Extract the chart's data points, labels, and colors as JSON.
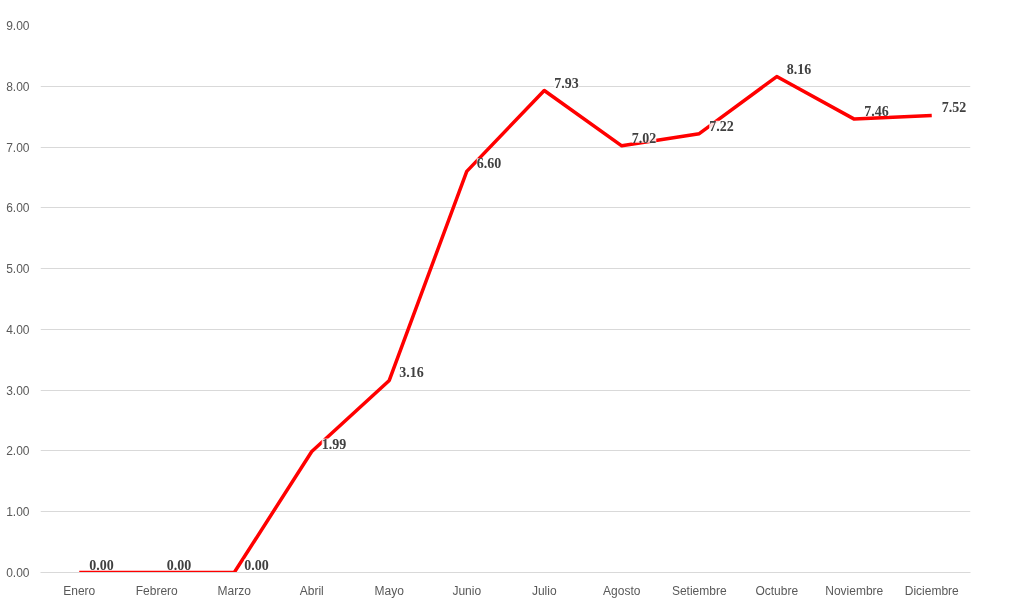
{
  "chart_data": {
    "type": "line",
    "categories": [
      "Enero",
      "Febrero",
      "Marzo",
      "Abril",
      "Mayo",
      "Junio",
      "Julio",
      "Agosto",
      "Setiembre",
      "Octubre",
      "Noviembre",
      "Diciembre"
    ],
    "series": [
      {
        "color": "#ff0000",
        "values": [
          0,
          0,
          0,
          1.99,
          3.16,
          6.6,
          7.93,
          7.02,
          7.22,
          8.16,
          7.46,
          7.52
        ],
        "value_labels": [
          "0.00",
          "0.00",
          "0.00",
          "1.99",
          "3.16",
          "6.60",
          "7.93",
          "7.02",
          "7.22",
          "8.16",
          "7.46",
          "7.52"
        ]
      }
    ],
    "ylim": [
      0,
      9
    ],
    "yticks": [
      {
        "value": 0,
        "label": "0.00"
      },
      {
        "value": 1,
        "label": "1.00"
      },
      {
        "value": 2,
        "label": "2.00"
      },
      {
        "value": 3,
        "label": "3.00"
      },
      {
        "value": 4,
        "label": "4.00"
      },
      {
        "value": 5,
        "label": "5.00"
      },
      {
        "value": 6,
        "label": "6.00"
      },
      {
        "value": 7,
        "label": "7.00"
      },
      {
        "value": 8,
        "label": "8.00"
      },
      {
        "value": 9,
        "label": "9.00"
      }
    ],
    "grid": "y",
    "marker": "none",
    "line_style": "solid"
  }
}
